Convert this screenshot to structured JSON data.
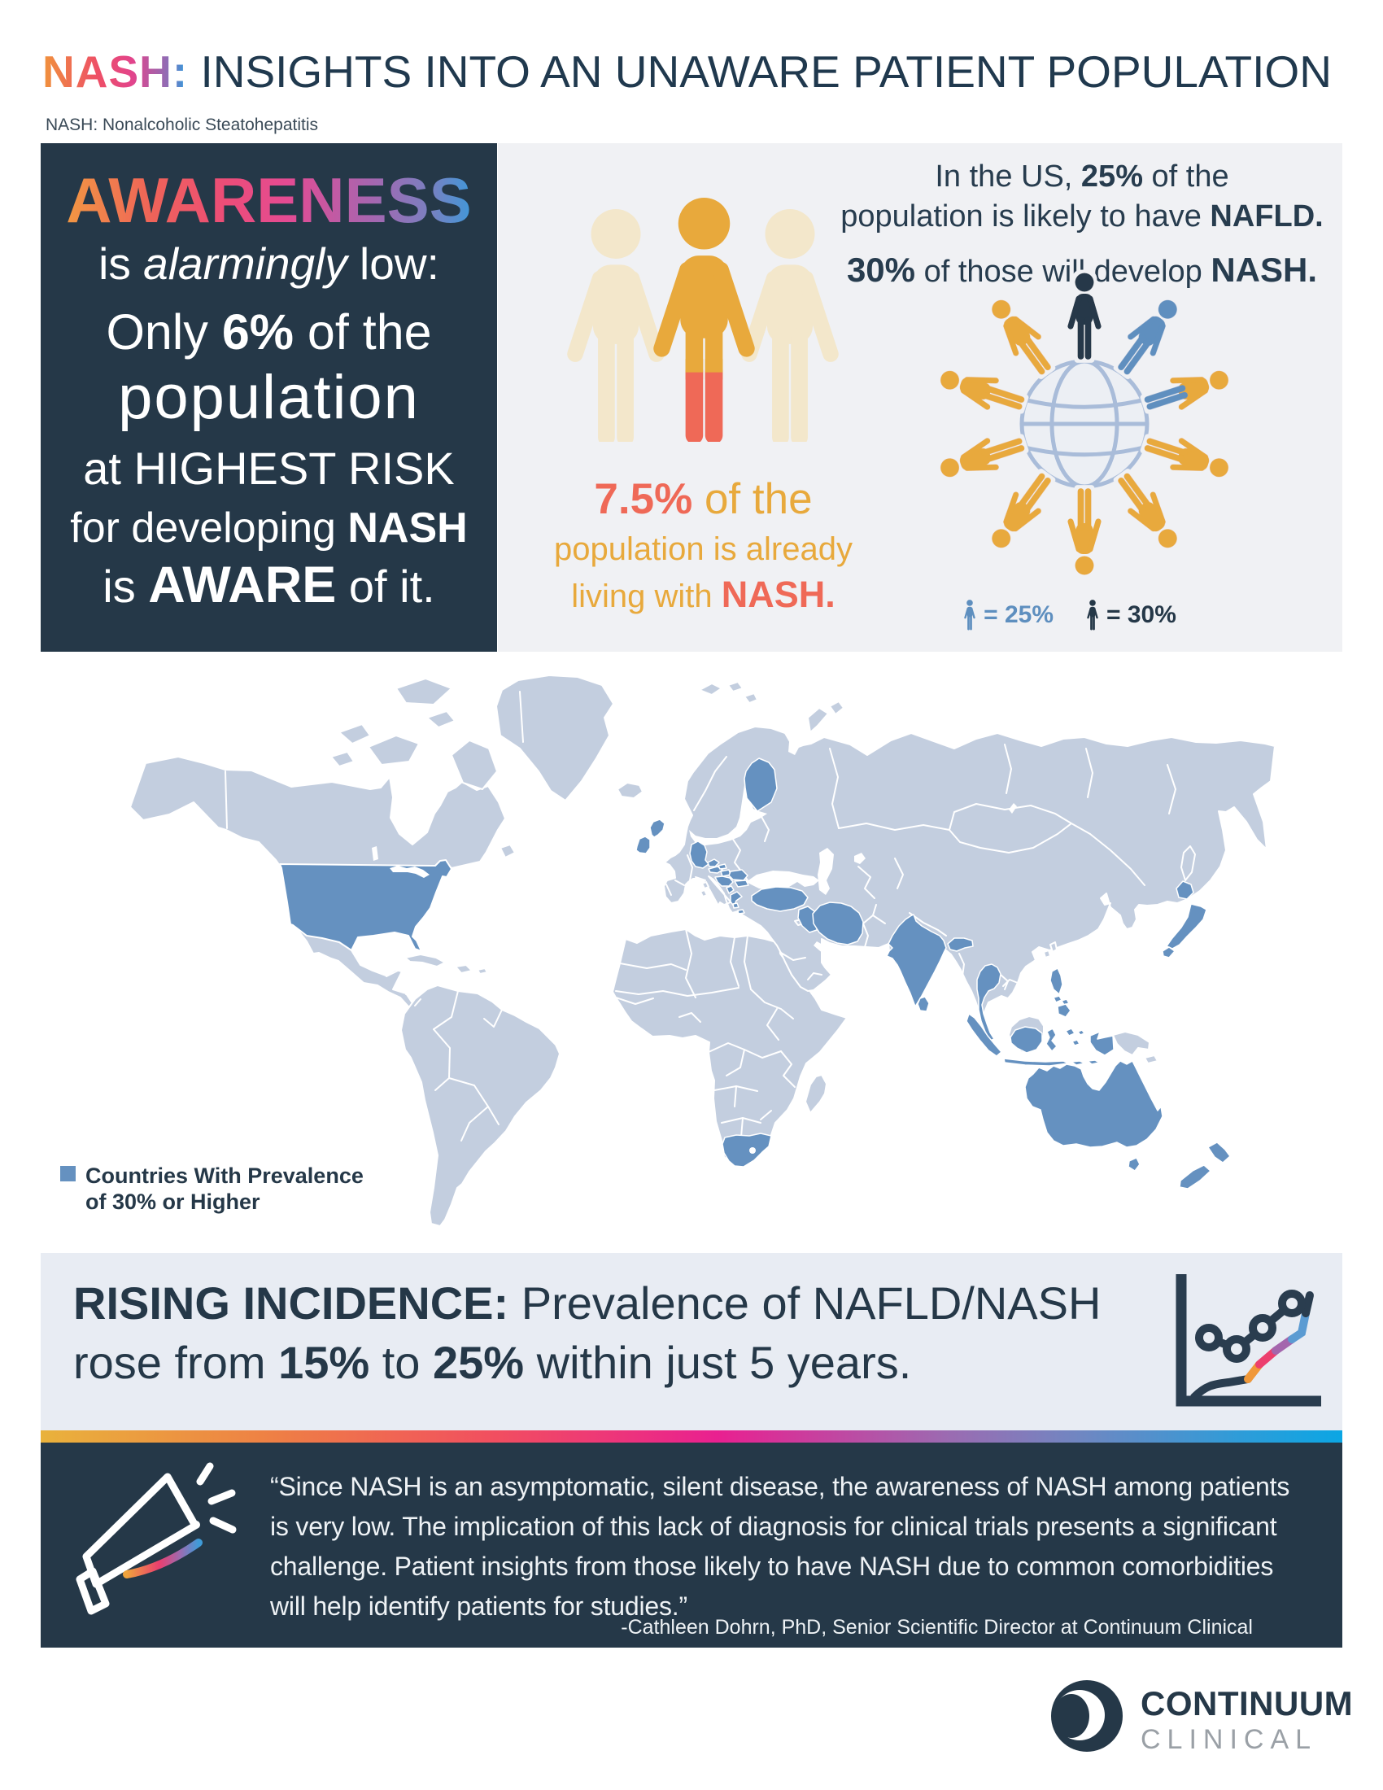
{
  "header": {
    "title_accent": "NASH:",
    "title_rest": " INSIGHTS INTO AN UNAWARE PATIENT POPULATION",
    "subtitle": "NASH: Nonalcoholic Steatohepatitis"
  },
  "awareness_panel": {
    "headline": "AWARENESS",
    "line2_pre": "is ",
    "line2_italic": "alarmingly",
    "line2_post": " low:",
    "line3_pre": "Only ",
    "line3_bold": "6%",
    "line3_post": " of the",
    "line4": "population",
    "line5": "at HIGHEST RISK",
    "line6_pre": "for developing ",
    "line6_bold": "NASH",
    "line7_pre": "is ",
    "line7_bold": "AWARE",
    "line7_post": " of it."
  },
  "nash_stat": {
    "pct": "7.5%",
    "line1_rest": " of the",
    "line2": "population is already",
    "line3_pre": "living with ",
    "line3_bold": "NASH."
  },
  "us_stat": {
    "line1_pre": "In the US, ",
    "line1_bold": "25%",
    "line1_post": " of the",
    "line2_pre": "population is likely to have ",
    "line2_bold": "NAFLD.",
    "line3_bold1": "30%",
    "line3_mid": " of those will develop ",
    "line3_bold2": "NASH.",
    "legend_25": "= 25%",
    "legend_30": "= 30%"
  },
  "map": {
    "legend_line1": "Countries With Prevalence",
    "legend_line2": "of 30% or Higher",
    "base_color": "#c3cedf",
    "highlight_color": "#6591c0"
  },
  "rising": {
    "bold_lead": "RISING INCIDENCE:",
    "seg1": " Prevalence of NAFLD/NASH rose from ",
    "pct1": "15%",
    "seg2": " to ",
    "pct2": "25%",
    "seg3": " within just 5 years."
  },
  "quote": {
    "lines": [
      "“Since NASH is an asymptomatic, silent disease, the awareness of NASH among patients",
      "is very low. The implication of this lack of diagnosis for clinical trials presents a significant",
      "challenge. Patient insights from those likely to have NASH due to common comorbidities",
      "will help identify patients for studies.”"
    ],
    "attribution": "-Cathleen Dohrn, PhD, Senior Scientific Director at Continuum Clinical"
  },
  "footer": {
    "brand_line1": "CONTINUUM",
    "brand_line2": "CLINICAL"
  },
  "colors": {
    "navy": "#253848",
    "gold": "#e8a93c",
    "cream": "#f3e7cb",
    "coral": "#ef6957",
    "person_blue": "#5e8fbf",
    "map_base": "#c3cedf",
    "map_highlight": "#6591c0"
  }
}
